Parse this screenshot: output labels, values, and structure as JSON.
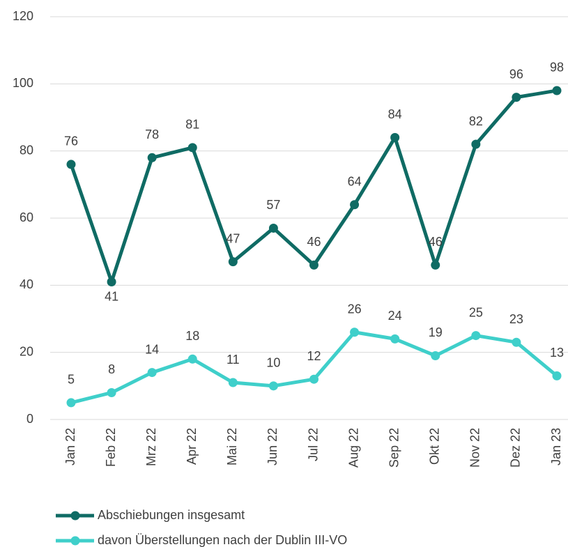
{
  "chart_data": {
    "type": "line",
    "categories": [
      "Jan 22",
      "Feb 22",
      "Mrz 22",
      "Apr 22",
      "Mai 22",
      "Jun 22",
      "Jul 22",
      "Aug 22",
      "Sep 22",
      "Okt 22",
      "Nov 22",
      "Dez 22",
      "Jan 23"
    ],
    "series": [
      {
        "name": "Abschiebungen insgesamt",
        "color": "#0f6b64",
        "values": [
          76,
          41,
          78,
          81,
          47,
          57,
          46,
          64,
          84,
          46,
          82,
          96,
          98
        ]
      },
      {
        "name": "davon Überstellungen nach der Dublin III-VO",
        "color": "#3fcfca",
        "values": [
          5,
          8,
          14,
          18,
          11,
          10,
          12,
          26,
          24,
          19,
          25,
          23,
          13
        ]
      }
    ],
    "ylim": [
      0,
      120
    ],
    "yticks": [
      0,
      20,
      40,
      60,
      80,
      100,
      120
    ],
    "grid": true,
    "legend": "bottom"
  }
}
